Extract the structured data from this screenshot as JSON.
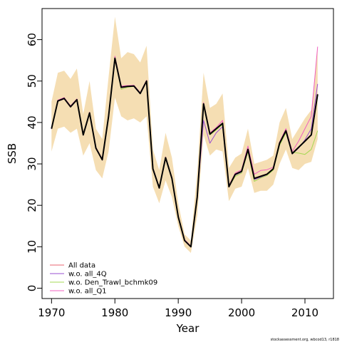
{
  "chart_data": {
    "type": "line",
    "xlabel": "Year",
    "ylabel": "SSB",
    "xlim": [
      1968.5,
      2014.5
    ],
    "ylim": [
      -2.5,
      67.5
    ],
    "xticks": [
      1970,
      1980,
      1990,
      2000,
      2010
    ],
    "yticks": [
      0,
      10,
      20,
      30,
      40,
      50,
      60
    ],
    "xtick_labels": [
      "1970",
      "1980",
      "1990",
      "2000",
      "2010"
    ],
    "ytick_labels": [
      "0",
      "10",
      "20",
      "30",
      "40",
      "50",
      "60"
    ],
    "grid": false,
    "legend_position": "bottom-left",
    "x": [
      1970,
      1971,
      1972,
      1973,
      1974,
      1975,
      1976,
      1977,
      1978,
      1979,
      1980,
      1981,
      1982,
      1983,
      1984,
      1985,
      1986,
      1987,
      1988,
      1989,
      1990,
      1991,
      1992,
      1993,
      1994,
      1995,
      1996,
      1997,
      1998,
      1999,
      2000,
      2001,
      2002,
      2003,
      2004,
      2005,
      2006,
      2007,
      2008,
      2009,
      2010,
      2011,
      2012
    ],
    "band": {
      "color": "#f5deb3",
      "lower": [
        33,
        38.5,
        39,
        37.5,
        38.5,
        32,
        35,
        28.5,
        26.5,
        33,
        46,
        41.5,
        40.5,
        41,
        40,
        41.5,
        24.5,
        20.5,
        26,
        22,
        15,
        10,
        8.5,
        17.5,
        37,
        32,
        33.5,
        33,
        21,
        24,
        24.5,
        29,
        23,
        23.5,
        23.5,
        25,
        30,
        33.5,
        29,
        28.5,
        30,
        30.5,
        36
      ],
      "upper": [
        45,
        52,
        52.5,
        50.5,
        53,
        42,
        50,
        38.5,
        36,
        51,
        65.5,
        55.5,
        57,
        56.5,
        54.5,
        58.5,
        33.5,
        28.5,
        37.5,
        31.5,
        20.5,
        13,
        11.5,
        28,
        52,
        43.5,
        44.5,
        47,
        29,
        31.5,
        32.5,
        38.5,
        30,
        30.5,
        31,
        32,
        40,
        43.5,
        36,
        38.5,
        41,
        43,
        58
      ]
    },
    "series": [
      {
        "name": "",
        "color": "#000000",
        "width": 2,
        "values": [
          38.5,
          45.2,
          45.8,
          43.8,
          45.5,
          37.0,
          42.3,
          33.8,
          31.0,
          41.5,
          55.5,
          48.5,
          48.7,
          48.8,
          47.0,
          50.0,
          28.8,
          24.2,
          31.5,
          26.5,
          17.2,
          11.5,
          10.0,
          22.0,
          44.5,
          37.2,
          38.5,
          39.8,
          24.5,
          27.5,
          28.2,
          33.5,
          26.5,
          27.0,
          27.5,
          28.8,
          35.0,
          38.0,
          32.5,
          34.0,
          35.5,
          37.0,
          46.8
        ]
      },
      {
        "name": "All data",
        "color": "#e8656f",
        "width": 1,
        "values": [
          38.6,
          45.3,
          45.9,
          43.9,
          45.6,
          37.1,
          42.4,
          33.9,
          31.1,
          41.6,
          55.6,
          48.6,
          48.8,
          48.9,
          47.1,
          50.1,
          28.9,
          24.3,
          31.6,
          26.6,
          17.3,
          11.6,
          10.1,
          22.1,
          44.6,
          37.3,
          38.6,
          39.9,
          24.6,
          27.6,
          28.3,
          33.6,
          26.6,
          27.1,
          27.6,
          28.9,
          35.1,
          38.1,
          32.6,
          34.1,
          35.6,
          37.1,
          46.9
        ]
      },
      {
        "name": "w.o. all_4Q",
        "color": "#9a4fd0",
        "width": 1,
        "values": [
          38.4,
          45.1,
          45.7,
          43.7,
          45.4,
          36.9,
          42.2,
          33.7,
          30.9,
          41.4,
          55.4,
          48.4,
          48.6,
          48.7,
          46.9,
          49.9,
          28.7,
          24.1,
          31.4,
          26.4,
          17.1,
          11.4,
          9.9,
          21.9,
          40.5,
          35.0,
          37.5,
          39.0,
          24.4,
          27.3,
          28.0,
          33.2,
          26.2,
          26.8,
          27.3,
          28.6,
          34.8,
          37.6,
          32.4,
          33.8,
          35.8,
          38.5,
          49.3
        ]
      },
      {
        "name": "w.o. Den_Trawl_bchmk09",
        "color": "#a6d854",
        "width": 1,
        "values": [
          38.5,
          45.2,
          45.8,
          43.8,
          45.5,
          37.0,
          42.3,
          33.8,
          31.0,
          41.5,
          55.5,
          48.0,
          48.5,
          48.7,
          47.0,
          50.0,
          28.8,
          24.2,
          31.5,
          26.5,
          17.2,
          11.5,
          10.0,
          22.0,
          44.0,
          37.0,
          38.2,
          39.5,
          24.5,
          27.0,
          27.8,
          33.0,
          25.8,
          26.6,
          27.2,
          28.5,
          34.5,
          37.5,
          32.8,
          32.6,
          32.3,
          33.5,
          38.0
        ]
      },
      {
        "name": "w.o. all_Q1",
        "color": "#f060c0",
        "width": 1,
        "values": [
          38.7,
          45.4,
          46.0,
          44.0,
          45.7,
          37.2,
          42.5,
          34.0,
          31.2,
          41.8,
          56.0,
          48.8,
          48.9,
          49.0,
          47.2,
          50.2,
          29.0,
          24.4,
          31.7,
          26.7,
          17.4,
          11.7,
          10.2,
          22.3,
          44.8,
          37.5,
          38.8,
          40.5,
          24.8,
          27.8,
          28.6,
          34.3,
          27.5,
          28.4,
          28.6,
          29.2,
          35.3,
          38.5,
          33.0,
          35.5,
          38.5,
          41.5,
          58.3
        ]
      }
    ]
  },
  "credit": "stockassessment.org, wbcod13, r1818"
}
